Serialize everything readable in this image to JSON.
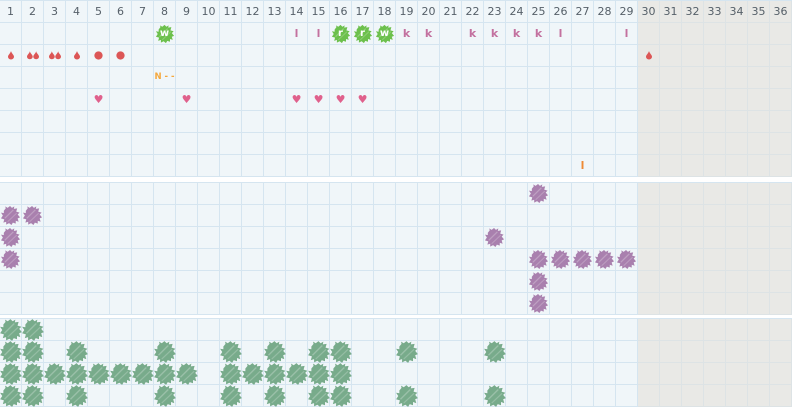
{
  "grid": {
    "columns": 36,
    "column_labels": [
      "1",
      "2",
      "3",
      "4",
      "5",
      "6",
      "7",
      "8",
      "9",
      "10",
      "11",
      "12",
      "13",
      "14",
      "15",
      "16",
      "17",
      "18",
      "19",
      "20",
      "21",
      "22",
      "23",
      "24",
      "25",
      "26",
      "27",
      "28",
      "29",
      "30",
      "31",
      "32",
      "33",
      "34",
      "35",
      "36"
    ],
    "greyed_from_column": 30
  },
  "colors": {
    "cell_bg": "#f0f6f9",
    "grid_line": "#d5e5f0",
    "grey_bg": "#e9e9e6",
    "grey_line": "#dde3e5",
    "header_text": "#566069",
    "green_splat": "#6cc04c",
    "splat_letter_text": "#ffffff",
    "mauve_letter": "#c3719f",
    "drop_red": "#dc5656",
    "heart_pink": "#e0618c",
    "orange_text": "#f4a83e",
    "orange_letter": "#ee8a35",
    "purple_splat": "#a980ae",
    "sage_splat": "#78ab8b"
  },
  "sections": [
    {
      "name": "grid-section-symptoms",
      "header": true,
      "rows": [
        {
          "marks": [
            {
              "col": 8,
              "t": "gsplat",
              "v": "w"
            },
            {
              "col": 14,
              "t": "letter",
              "v": "l"
            },
            {
              "col": 15,
              "t": "letter",
              "v": "l"
            },
            {
              "col": 16,
              "t": "gsplat",
              "v": "r"
            },
            {
              "col": 17,
              "t": "gsplat",
              "v": "r"
            },
            {
              "col": 18,
              "t": "gsplat",
              "v": "w"
            },
            {
              "col": 19,
              "t": "letter",
              "v": "k"
            },
            {
              "col": 20,
              "t": "letter",
              "v": "k"
            },
            {
              "col": 22,
              "t": "letter",
              "v": "k"
            },
            {
              "col": 23,
              "t": "letter",
              "v": "k"
            },
            {
              "col": 24,
              "t": "letter",
              "v": "k"
            },
            {
              "col": 25,
              "t": "letter",
              "v": "k"
            },
            {
              "col": 26,
              "t": "letter",
              "v": "l"
            },
            {
              "col": 29,
              "t": "letter",
              "v": "l"
            }
          ]
        },
        {
          "marks": [
            {
              "col": 1,
              "t": "drop1"
            },
            {
              "col": 2,
              "t": "drop2"
            },
            {
              "col": 3,
              "t": "drop2"
            },
            {
              "col": 4,
              "t": "drop1"
            },
            {
              "col": 5,
              "t": "dot"
            },
            {
              "col": 6,
              "t": "dot"
            },
            {
              "col": 30,
              "t": "drop1"
            }
          ]
        },
        {
          "marks": [
            {
              "col": 8,
              "t": "otext",
              "v": "N - -"
            }
          ]
        },
        {
          "marks": [
            {
              "col": 5,
              "t": "heart"
            },
            {
              "col": 9,
              "t": "heart"
            },
            {
              "col": 14,
              "t": "heart"
            },
            {
              "col": 15,
              "t": "heart"
            },
            {
              "col": 16,
              "t": "heart"
            },
            {
              "col": 17,
              "t": "heart"
            }
          ]
        },
        {
          "marks": []
        },
        {
          "marks": []
        },
        {
          "marks": [
            {
              "col": 27,
              "t": "oletter",
              "v": "l"
            }
          ]
        }
      ]
    },
    {
      "name": "grid-section-purple",
      "header": false,
      "rows": [
        {
          "marks": [
            {
              "col": 25,
              "t": "psplat"
            }
          ]
        },
        {
          "marks": [
            {
              "col": 1,
              "t": "psplat"
            },
            {
              "col": 2,
              "t": "psplat"
            }
          ]
        },
        {
          "marks": [
            {
              "col": 1,
              "t": "psplat"
            },
            {
              "col": 23,
              "t": "psplat"
            }
          ]
        },
        {
          "marks": [
            {
              "col": 1,
              "t": "psplat"
            },
            {
              "col": 25,
              "t": "psplat"
            },
            {
              "col": 26,
              "t": "psplat"
            },
            {
              "col": 27,
              "t": "psplat"
            },
            {
              "col": 28,
              "t": "psplat"
            },
            {
              "col": 29,
              "t": "psplat"
            }
          ]
        },
        {
          "marks": [
            {
              "col": 25,
              "t": "psplat"
            }
          ]
        },
        {
          "marks": [
            {
              "col": 25,
              "t": "psplat"
            }
          ]
        }
      ]
    },
    {
      "name": "grid-section-green",
      "header": false,
      "rows": [
        {
          "marks": [
            {
              "col": 1,
              "t": "ssplat"
            },
            {
              "col": 2,
              "t": "ssplat"
            }
          ]
        },
        {
          "marks": [
            {
              "col": 1,
              "t": "ssplat"
            },
            {
              "col": 2,
              "t": "ssplat"
            },
            {
              "col": 4,
              "t": "ssplat"
            },
            {
              "col": 8,
              "t": "ssplat"
            },
            {
              "col": 11,
              "t": "ssplat"
            },
            {
              "col": 13,
              "t": "ssplat"
            },
            {
              "col": 15,
              "t": "ssplat"
            },
            {
              "col": 16,
              "t": "ssplat"
            },
            {
              "col": 19,
              "t": "ssplat"
            },
            {
              "col": 23,
              "t": "ssplat"
            }
          ]
        },
        {
          "marks": [
            {
              "col": 1,
              "t": "ssplat"
            },
            {
              "col": 2,
              "t": "ssplat"
            },
            {
              "col": 3,
              "t": "ssplat"
            },
            {
              "col": 4,
              "t": "ssplat"
            },
            {
              "col": 5,
              "t": "ssplat"
            },
            {
              "col": 6,
              "t": "ssplat"
            },
            {
              "col": 7,
              "t": "ssplat"
            },
            {
              "col": 8,
              "t": "ssplat"
            },
            {
              "col": 9,
              "t": "ssplat"
            },
            {
              "col": 11,
              "t": "ssplat"
            },
            {
              "col": 12,
              "t": "ssplat"
            },
            {
              "col": 13,
              "t": "ssplat"
            },
            {
              "col": 14,
              "t": "ssplat"
            },
            {
              "col": 15,
              "t": "ssplat"
            },
            {
              "col": 16,
              "t": "ssplat"
            }
          ]
        },
        {
          "marks": [
            {
              "col": 1,
              "t": "ssplat"
            },
            {
              "col": 2,
              "t": "ssplat"
            },
            {
              "col": 4,
              "t": "ssplat"
            },
            {
              "col": 8,
              "t": "ssplat"
            },
            {
              "col": 11,
              "t": "ssplat"
            },
            {
              "col": 13,
              "t": "ssplat"
            },
            {
              "col": 15,
              "t": "ssplat"
            },
            {
              "col": 16,
              "t": "ssplat"
            },
            {
              "col": 19,
              "t": "ssplat"
            },
            {
              "col": 23,
              "t": "ssplat"
            }
          ]
        }
      ]
    }
  ]
}
